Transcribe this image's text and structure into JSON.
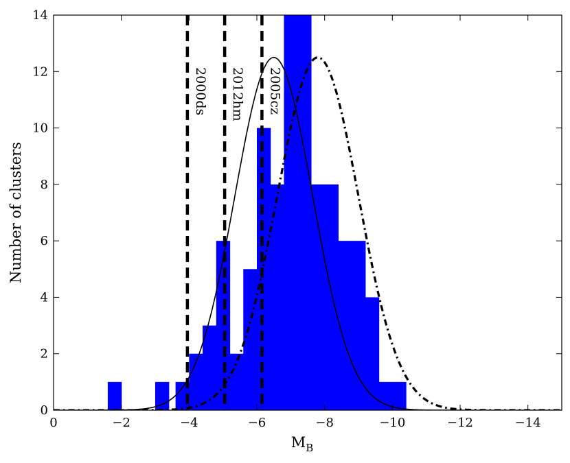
{
  "chart_data": {
    "type": "bar",
    "xlabel": "M",
    "xlabel_sub": "B",
    "ylabel": "Number of clusters",
    "xlim": [
      0,
      -15
    ],
    "ylim": [
      0,
      14
    ],
    "x_axis_reversed": true,
    "grid": false,
    "x_ticks": [
      0,
      -2,
      -4,
      -6,
      -8,
      -10,
      -12,
      -14
    ],
    "x_tick_labels": [
      "0",
      "−2",
      "−4",
      "−6",
      "−8",
      "−10",
      "−12",
      "−14"
    ],
    "y_ticks": [
      0,
      2,
      4,
      6,
      8,
      10,
      12,
      14
    ],
    "y_tick_labels": [
      "0",
      "2",
      "4",
      "6",
      "8",
      "10",
      "12",
      "14"
    ],
    "bar_color": "#0000ff",
    "histogram": {
      "bin_width": 0.4,
      "bins": [
        {
          "x0": -1.6,
          "count": 1
        },
        {
          "x0": -3.0,
          "count": 1
        },
        {
          "x0": -3.6,
          "count": 1
        },
        {
          "x0": -4.0,
          "count": 2
        },
        {
          "x0": -4.4,
          "count": 3
        },
        {
          "x0": -4.8,
          "count": 6
        },
        {
          "x0": -5.2,
          "count": 2
        },
        {
          "x0": -5.6,
          "count": 5
        },
        {
          "x0": -6.0,
          "count": 10
        },
        {
          "x0": -6.4,
          "count": 8
        },
        {
          "x0": -6.8,
          "count": 14
        },
        {
          "x0": -7.2,
          "count": 14
        },
        {
          "x0": -7.6,
          "count": 8
        },
        {
          "x0": -8.0,
          "count": 8
        },
        {
          "x0": -8.4,
          "count": 6
        },
        {
          "x0": -8.8,
          "count": 6
        },
        {
          "x0": -9.2,
          "count": 4
        },
        {
          "x0": -9.6,
          "count": 1
        },
        {
          "x0": -10.0,
          "count": 1
        }
      ]
    },
    "curves": [
      {
        "style": "solid",
        "mean": -6.5,
        "sigma": 1.15,
        "peak": 12.5
      },
      {
        "style": "dash-dot",
        "mean": -7.8,
        "sigma": 1.2,
        "peak": 12.5
      }
    ],
    "vertical_lines": [
      {
        "x": -3.95,
        "label": "2000ds"
      },
      {
        "x": -5.05,
        "label": "2012hm"
      },
      {
        "x": -6.15,
        "label": "2005cz"
      }
    ]
  }
}
